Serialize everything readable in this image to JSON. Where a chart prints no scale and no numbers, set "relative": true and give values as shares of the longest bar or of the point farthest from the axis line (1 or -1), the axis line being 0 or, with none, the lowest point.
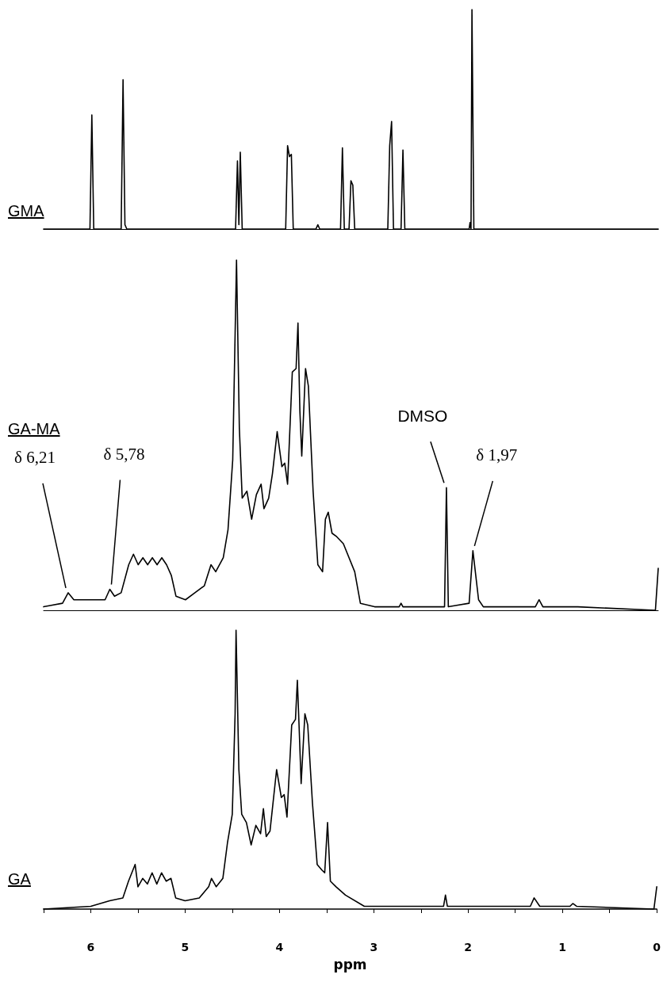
{
  "chart_data": [
    {
      "type": "line",
      "relative": true,
      "tick_labels": false,
      "xlim": [
        6.5,
        0
      ],
      "legend": false,
      "marker": "none",
      "line_style": "solid",
      "series": [
        {
          "name": "GMA",
          "color": "#000000",
          "x": [
            6.5,
            6.01,
            5.99,
            5.97,
            5.68,
            5.66,
            5.64,
            5.62,
            4.47,
            4.45,
            4.435,
            4.42,
            4.4,
            3.94,
            3.92,
            3.9,
            3.88,
            3.86,
            3.62,
            3.6,
            3.58,
            3.36,
            3.34,
            3.32,
            3.27,
            3.25,
            3.23,
            3.21,
            2.86,
            2.84,
            2.82,
            2.8,
            2.72,
            2.7,
            2.68,
            2.0,
            1.99,
            1.98,
            1.97,
            1.95,
            0
          ],
          "values": [
            0,
            0,
            0.52,
            0,
            0,
            0.68,
            0.02,
            0,
            0,
            0.31,
            0.02,
            0.35,
            0,
            0,
            0.38,
            0.33,
            0.34,
            0,
            0,
            0.02,
            0,
            0,
            0.37,
            0,
            0,
            0.22,
            0.2,
            0,
            0,
            0.38,
            0.49,
            0,
            0,
            0.36,
            0,
            0,
            0.03,
            0,
            1,
            0,
            0
          ]
        }
      ]
    },
    {
      "type": "line",
      "relative": true,
      "tick_labels": false,
      "xlim": [
        6.5,
        0
      ],
      "legend": false,
      "marker": "none",
      "line_style": "solid",
      "series": [
        {
          "name": "GA-MA",
          "color": "#000000",
          "x": [
            6.5,
            6.3,
            6.24,
            6.18,
            6.0,
            5.85,
            5.8,
            5.75,
            5.68,
            5.6,
            5.55,
            5.5,
            5.45,
            5.4,
            5.35,
            5.3,
            5.25,
            5.2,
            5.15,
            5.1,
            5.0,
            4.9,
            4.8,
            4.73,
            4.68,
            4.6,
            4.55,
            4.5,
            4.46,
            4.43,
            4.4,
            4.35,
            4.3,
            4.25,
            4.2,
            4.17,
            4.12,
            4.08,
            4.03,
            3.98,
            3.95,
            3.92,
            3.87,
            3.83,
            3.81,
            3.79,
            3.77,
            3.73,
            3.7,
            3.65,
            3.6,
            3.55,
            3.52,
            3.49,
            3.45,
            3.4,
            3.33,
            3.21,
            3.15,
            3.0,
            2.74,
            2.72,
            2.7,
            2.26,
            2.24,
            2.22,
            2.0,
            1.96,
            1.9,
            1.85,
            1.3,
            1.26,
            1.22,
            0.85,
            0.03,
            0.0
          ],
          "values": [
            0.01,
            0.02,
            0.05,
            0.03,
            0.03,
            0.03,
            0.06,
            0.04,
            0.05,
            0.13,
            0.16,
            0.13,
            0.15,
            0.13,
            0.15,
            0.13,
            0.15,
            0.13,
            0.1,
            0.04,
            0.03,
            0.05,
            0.07,
            0.13,
            0.11,
            0.15,
            0.23,
            0.43,
            1.0,
            0.52,
            0.32,
            0.34,
            0.26,
            0.33,
            0.36,
            0.29,
            0.32,
            0.39,
            0.51,
            0.41,
            0.42,
            0.36,
            0.68,
            0.69,
            0.82,
            0.57,
            0.44,
            0.69,
            0.64,
            0.34,
            0.13,
            0.11,
            0.26,
            0.28,
            0.22,
            0.21,
            0.19,
            0.11,
            0.02,
            0.01,
            0.01,
            0.02,
            0.01,
            0.01,
            0.35,
            0.01,
            0.02,
            0.17,
            0.03,
            0.01,
            0.01,
            0.03,
            0.01,
            0.01,
            0.0,
            0.12
          ]
        }
      ],
      "annotations": [
        {
          "text": "δ 6,21",
          "x": 6.24,
          "y": 0.05
        },
        {
          "text": "δ 5,78",
          "x": 5.8,
          "y": 0.06
        },
        {
          "text": "DMSO",
          "x": 2.24,
          "y": 0.35
        },
        {
          "text": "δ 1,97",
          "x": 1.96,
          "y": 0.17
        }
      ]
    },
    {
      "type": "line",
      "relative": true,
      "tick_labels": "x",
      "xlim": [
        6.5,
        0
      ],
      "xlabel": "ppm",
      "legend": false,
      "marker": "none",
      "line_style": "solid",
      "xticks": [
        {
          "value": 6.5,
          "label": null
        },
        6,
        {
          "value": 5.5,
          "label": null
        },
        5,
        {
          "value": 4.5,
          "label": null
        },
        4,
        {
          "value": 3.5,
          "label": null
        },
        3,
        {
          "value": 2.5,
          "label": null
        },
        2,
        {
          "value": 1.5,
          "label": null
        },
        1,
        {
          "value": 0.5,
          "label": null
        },
        0
      ],
      "series": [
        {
          "name": "GA",
          "color": "#000000",
          "x": [
            6.5,
            6.0,
            5.8,
            5.66,
            5.6,
            5.53,
            5.5,
            5.45,
            5.4,
            5.35,
            5.3,
            5.25,
            5.2,
            5.15,
            5.1,
            5.0,
            4.85,
            4.75,
            4.72,
            4.67,
            4.6,
            4.55,
            4.5,
            4.47,
            4.46,
            4.43,
            4.4,
            4.35,
            4.3,
            4.25,
            4.2,
            4.17,
            4.14,
            4.1,
            4.03,
            3.98,
            3.95,
            3.92,
            3.87,
            3.83,
            3.81,
            3.79,
            3.77,
            3.73,
            3.7,
            3.65,
            3.6,
            3.55,
            3.52,
            3.49,
            3.46,
            3.4,
            3.3,
            3.1,
            2.8,
            2.26,
            2.24,
            2.22,
            1.34,
            1.3,
            1.24,
            0.92,
            0.89,
            0.85,
            0.03,
            0.0
          ],
          "values": [
            0,
            0.01,
            0.03,
            0.04,
            0.1,
            0.16,
            0.08,
            0.11,
            0.09,
            0.13,
            0.09,
            0.13,
            0.1,
            0.11,
            0.04,
            0.03,
            0.04,
            0.08,
            0.11,
            0.08,
            0.11,
            0.24,
            0.34,
            0.7,
            1.0,
            0.5,
            0.34,
            0.31,
            0.23,
            0.3,
            0.27,
            0.36,
            0.26,
            0.28,
            0.5,
            0.4,
            0.41,
            0.33,
            0.66,
            0.68,
            0.82,
            0.64,
            0.45,
            0.7,
            0.66,
            0.38,
            0.16,
            0.14,
            0.13,
            0.31,
            0.1,
            0.08,
            0.05,
            0.01,
            0.01,
            0.01,
            0.05,
            0.01,
            0.01,
            0.04,
            0.01,
            0.01,
            0.02,
            0.01,
            0,
            0.08
          ]
        }
      ]
    }
  ]
}
